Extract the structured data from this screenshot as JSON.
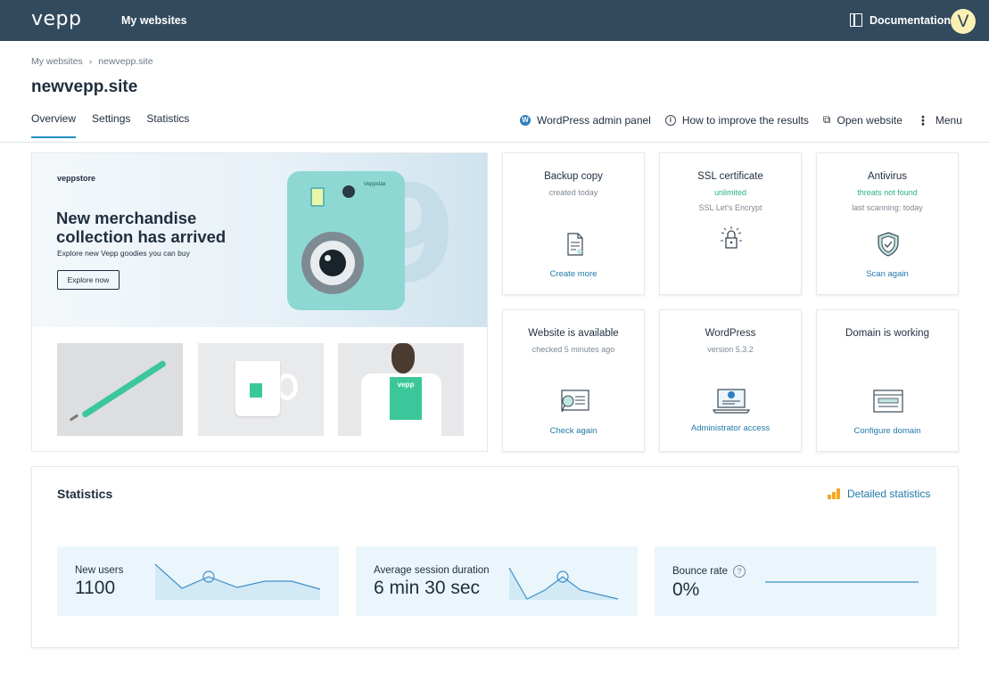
{
  "topbar": {
    "logo": "vepp",
    "nav_my_websites": "My websites",
    "documentation": "Documentation",
    "avatar_letter": "V"
  },
  "breadcrumb": [
    "My websites",
    "newvepp.site"
  ],
  "breadcrumb_separator": "›",
  "page": {
    "title": "newvepp.site",
    "tabs": [
      "Overview",
      "Settings",
      "Statistics"
    ],
    "active_tab": "Overview"
  },
  "actions": {
    "wp_admin": "WordPress admin panel",
    "improve": "How to improve the results",
    "open_website": "Open website",
    "menu": "Menu"
  },
  "promo": {
    "store": "veppstore",
    "headline": "New merchandise collection has arrived",
    "subtitle": "Explore new Vepp goodies you can buy",
    "button": "Explore now",
    "camera_brand": "Veppstax",
    "big_number": "9",
    "tee_logo": "vepp"
  },
  "cards": [
    {
      "title": "Backup copy",
      "sub1": "created today",
      "sub2": "",
      "link": "Create more",
      "icon": "document-icon"
    },
    {
      "title": "SSL certificate",
      "sub1": "unlimited",
      "sub2": "SSL Let's Encrypt",
      "link": "",
      "icon": "lock-icon"
    },
    {
      "title": "Antivirus",
      "sub1": "threats not found",
      "sub2": "last scanning: today",
      "link": "Scan again",
      "icon": "shield-icon"
    },
    {
      "title": "Website is available",
      "sub1": "checked 5 minutes ago",
      "sub2": "",
      "link": "Check again",
      "icon": "certificate-icon"
    },
    {
      "title": "WordPress",
      "sub1": "version 5.3.2",
      "sub2": "",
      "link": "Administrator access",
      "icon": "laptop-wordpress-icon"
    },
    {
      "title": "Domain is working",
      "sub1": "",
      "sub2": "",
      "link": "Configure domain",
      "icon": "browser-icon"
    }
  ],
  "statistics": {
    "title": "Statistics",
    "detailed_link": "Detailed statistics",
    "metrics": [
      {
        "label": "New users",
        "value": "1100"
      },
      {
        "label": "Average session duration",
        "value": "6 min 30 sec"
      },
      {
        "label": "Bounce rate",
        "value": "0%",
        "help": "?"
      }
    ]
  },
  "colors": {
    "topbar": "#324a5e",
    "accent": "#1f8fc0",
    "link": "#1f78a8",
    "green": "#2bb27e",
    "metric_bg": "#eaf6fc",
    "avatar_bg": "#fbf0b4"
  }
}
